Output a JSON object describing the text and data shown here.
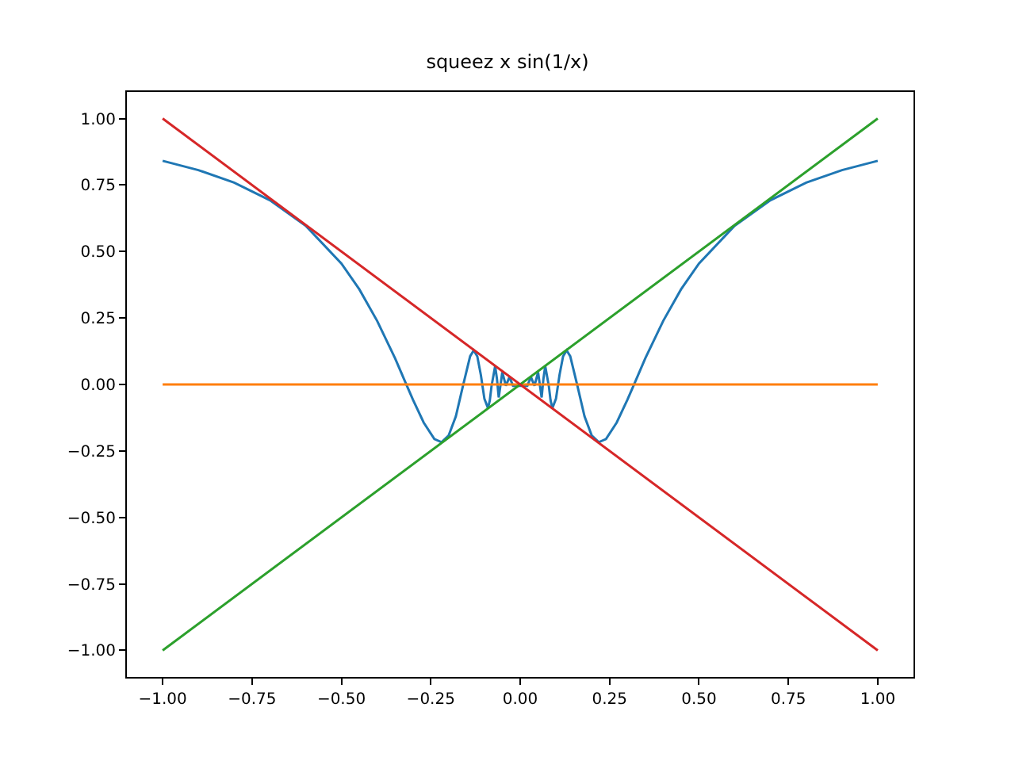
{
  "chart_data": {
    "type": "line",
    "title": "squeez x sin(1/x)",
    "xlim": [
      -1.1,
      1.1
    ],
    "ylim": [
      -1.1,
      1.1
    ],
    "xticks": [
      {
        "value": -1,
        "label": "−1.00"
      },
      {
        "value": -0.75,
        "label": "−0.75"
      },
      {
        "value": -0.5,
        "label": "−0.50"
      },
      {
        "value": -0.25,
        "label": "−0.25"
      },
      {
        "value": 0,
        "label": "0.00"
      },
      {
        "value": 0.25,
        "label": "0.25"
      },
      {
        "value": 0.5,
        "label": "0.50"
      },
      {
        "value": 0.75,
        "label": "0.75"
      },
      {
        "value": 1,
        "label": "1.00"
      }
    ],
    "yticks": [
      {
        "value": -1,
        "label": "−1.00"
      },
      {
        "value": -0.75,
        "label": "−0.75"
      },
      {
        "value": -0.5,
        "label": "−0.50"
      },
      {
        "value": -0.25,
        "label": "−0.25"
      },
      {
        "value": 0,
        "label": "0.00"
      },
      {
        "value": 0.25,
        "label": "0.25"
      },
      {
        "value": 0.5,
        "label": "0.50"
      },
      {
        "value": 0.75,
        "label": "0.75"
      },
      {
        "value": 1,
        "label": "1.00"
      }
    ],
    "grid": false,
    "marker": "none",
    "line_style": "solid",
    "series": [
      {
        "color": "#1f77b4",
        "x": [
          -1,
          -0.9,
          -0.8,
          -0.7,
          -0.6,
          -0.5,
          -0.45,
          -0.4,
          -0.35,
          -0.32,
          -0.3,
          -0.27,
          -0.24,
          -0.22,
          -0.2,
          -0.18,
          -0.16,
          -0.14,
          -0.13,
          -0.12,
          -0.11,
          -0.1,
          -0.09,
          -0.085,
          -0.08,
          -0.07,
          -0.065,
          -0.06,
          -0.05,
          -0.04,
          -0.03,
          -0.02,
          -0.01,
          0.01,
          0.02,
          0.03,
          0.04,
          0.05,
          0.06,
          0.065,
          0.07,
          0.08,
          0.085,
          0.09,
          0.1,
          0.11,
          0.12,
          0.13,
          0.14,
          0.16,
          0.18,
          0.2,
          0.22,
          0.24,
          0.27,
          0.3,
          0.32,
          0.35,
          0.4,
          0.45,
          0.5,
          0.6,
          0.7,
          0.8,
          0.9,
          1
        ],
        "values": [
          0.841,
          0.806,
          0.759,
          0.693,
          0.597,
          0.455,
          0.358,
          0.239,
          0.099,
          0.005,
          -0.057,
          -0.143,
          -0.205,
          -0.217,
          -0.192,
          -0.12,
          -0.005,
          0.106,
          0.128,
          0.106,
          0.036,
          -0.054,
          -0.089,
          -0.06,
          -0.005,
          0.069,
          0.021,
          -0.049,
          0.046,
          -0.005,
          0.028,
          -0.005,
          -0.005,
          -0.005,
          -0.005,
          0.028,
          -0.005,
          0.046,
          -0.049,
          0.021,
          0.069,
          -0.005,
          -0.06,
          -0.089,
          -0.054,
          0.036,
          0.106,
          0.128,
          0.106,
          -0.005,
          -0.12,
          -0.192,
          -0.217,
          -0.205,
          -0.143,
          -0.057,
          0.005,
          0.099,
          0.239,
          0.358,
          0.455,
          0.597,
          0.693,
          0.759,
          0.806,
          0.841
        ]
      },
      {
        "color": "#ff7f0e",
        "x": [
          -1,
          1
        ],
        "values": [
          0,
          0
        ]
      },
      {
        "color": "#2ca02c",
        "x": [
          -1,
          1
        ],
        "values": [
          -1,
          1
        ]
      },
      {
        "color": "#d62728",
        "x": [
          -1,
          1
        ],
        "values": [
          1,
          -1
        ]
      }
    ]
  }
}
